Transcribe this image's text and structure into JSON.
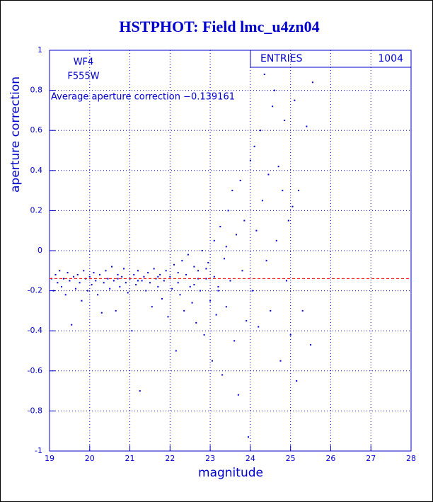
{
  "chart_data": {
    "type": "scatter",
    "title": "HSTPHOT: Field lmc_u4zn04",
    "xlabel": "magnitude",
    "ylabel": "aperture correction",
    "annotations": [
      "WF4",
      "F555W"
    ],
    "average_label": "Average aperture correction −0.139161",
    "average": -0.139161,
    "average_color": "#ff0000",
    "stats": {
      "label": "ENTRIES",
      "value": 1004
    },
    "color": "#0000cc",
    "grid": true,
    "xlim": [
      19,
      28
    ],
    "ylim": [
      -1,
      1
    ],
    "xticks": [
      19,
      20,
      21,
      22,
      23,
      24,
      25,
      26,
      27,
      28
    ],
    "yticks": [
      -1,
      -0.8,
      -0.6,
      -0.4,
      -0.2,
      0,
      0.2,
      0.4,
      0.6,
      0.8,
      1
    ],
    "x": [
      19.05,
      19.1,
      19.15,
      19.2,
      19.25,
      19.3,
      19.35,
      19.4,
      19.45,
      19.5,
      19.55,
      19.6,
      19.65,
      19.7,
      19.75,
      19.8,
      19.85,
      19.9,
      19.95,
      20.0,
      20.05,
      20.1,
      20.15,
      20.2,
      20.25,
      20.3,
      20.35,
      20.4,
      20.45,
      20.5,
      20.55,
      20.6,
      20.65,
      20.7,
      20.75,
      20.8,
      20.85,
      20.9,
      20.95,
      21.0,
      21.05,
      21.1,
      21.15,
      21.2,
      21.25,
      21.3,
      21.35,
      21.4,
      21.45,
      21.5,
      21.55,
      21.6,
      21.65,
      21.7,
      21.75,
      21.8,
      21.85,
      21.9,
      21.95,
      22.0,
      22.05,
      22.1,
      22.15,
      22.2,
      22.25,
      22.3,
      22.35,
      22.4,
      22.45,
      22.5,
      22.55,
      22.6,
      22.65,
      22.7,
      22.75,
      22.8,
      22.85,
      22.9,
      22.95,
      23.0,
      23.05,
      23.1,
      23.15,
      23.2,
      23.25,
      23.3,
      23.35,
      23.4,
      23.45,
      23.5,
      23.55,
      23.6,
      23.65,
      23.7,
      23.75,
      23.8,
      23.85,
      23.9,
      23.95,
      24.0,
      24.05,
      24.1,
      24.15,
      24.2,
      24.25,
      24.3,
      24.35,
      24.4,
      24.45,
      24.5,
      24.55,
      24.6,
      24.65,
      24.7,
      24.75,
      24.8,
      24.85,
      24.9,
      24.95,
      25.0,
      25.05,
      25.1,
      25.15,
      25.2,
      25.3,
      25.4,
      25.5,
      25.55,
      22.7,
      22.2,
      21.7,
      21.2,
      20.7,
      22.9,
      23.1,
      23.4,
      23.2,
      22.6
    ],
    "y": [
      -0.14,
      -0.2,
      -0.12,
      -0.16,
      -0.1,
      -0.18,
      -0.14,
      -0.22,
      -0.11,
      -0.15,
      -0.37,
      -0.13,
      -0.19,
      -0.12,
      -0.16,
      -0.25,
      -0.1,
      -0.14,
      -0.2,
      -0.13,
      -0.17,
      -0.11,
      -0.15,
      -0.22,
      -0.12,
      -0.31,
      -0.16,
      -0.1,
      -0.14,
      -0.19,
      -0.08,
      -0.15,
      -0.3,
      -0.12,
      -0.18,
      -0.13,
      -0.09,
      -0.16,
      -0.21,
      -0.14,
      -0.4,
      -0.12,
      -0.17,
      -0.1,
      -0.7,
      -0.15,
      -0.13,
      -0.2,
      -0.11,
      -0.16,
      -0.28,
      -0.09,
      -0.14,
      -0.18,
      -0.12,
      -0.24,
      -0.15,
      -0.1,
      -0.33,
      -0.13,
      -0.19,
      -0.07,
      -0.5,
      -0.16,
      -0.22,
      -0.05,
      -0.3,
      -0.12,
      -0.02,
      -0.18,
      -0.26,
      -0.08,
      -0.36,
      -0.1,
      -0.2,
      0.0,
      -0.42,
      -0.14,
      -0.06,
      -0.25,
      -0.55,
      0.05,
      -0.32,
      -0.18,
      0.12,
      -0.62,
      -0.04,
      -0.28,
      0.2,
      -0.15,
      0.3,
      -0.45,
      0.08,
      -0.72,
      0.35,
      -0.1,
      0.15,
      -0.35,
      -0.93,
      0.45,
      -0.2,
      0.52,
      0.1,
      -0.38,
      0.6,
      0.25,
      0.88,
      -0.05,
      0.38,
      -0.3,
      0.72,
      0.8,
      0.05,
      0.42,
      -0.55,
      0.3,
      0.65,
      -0.15,
      0.15,
      -0.42,
      0.22,
      0.75,
      -0.65,
      0.3,
      -0.3,
      0.62,
      -0.47,
      0.84,
      -0.14,
      -0.11,
      -0.13,
      -0.15,
      -0.14,
      -0.09,
      -0.13,
      0.02,
      -0.2,
      -0.17
    ]
  }
}
